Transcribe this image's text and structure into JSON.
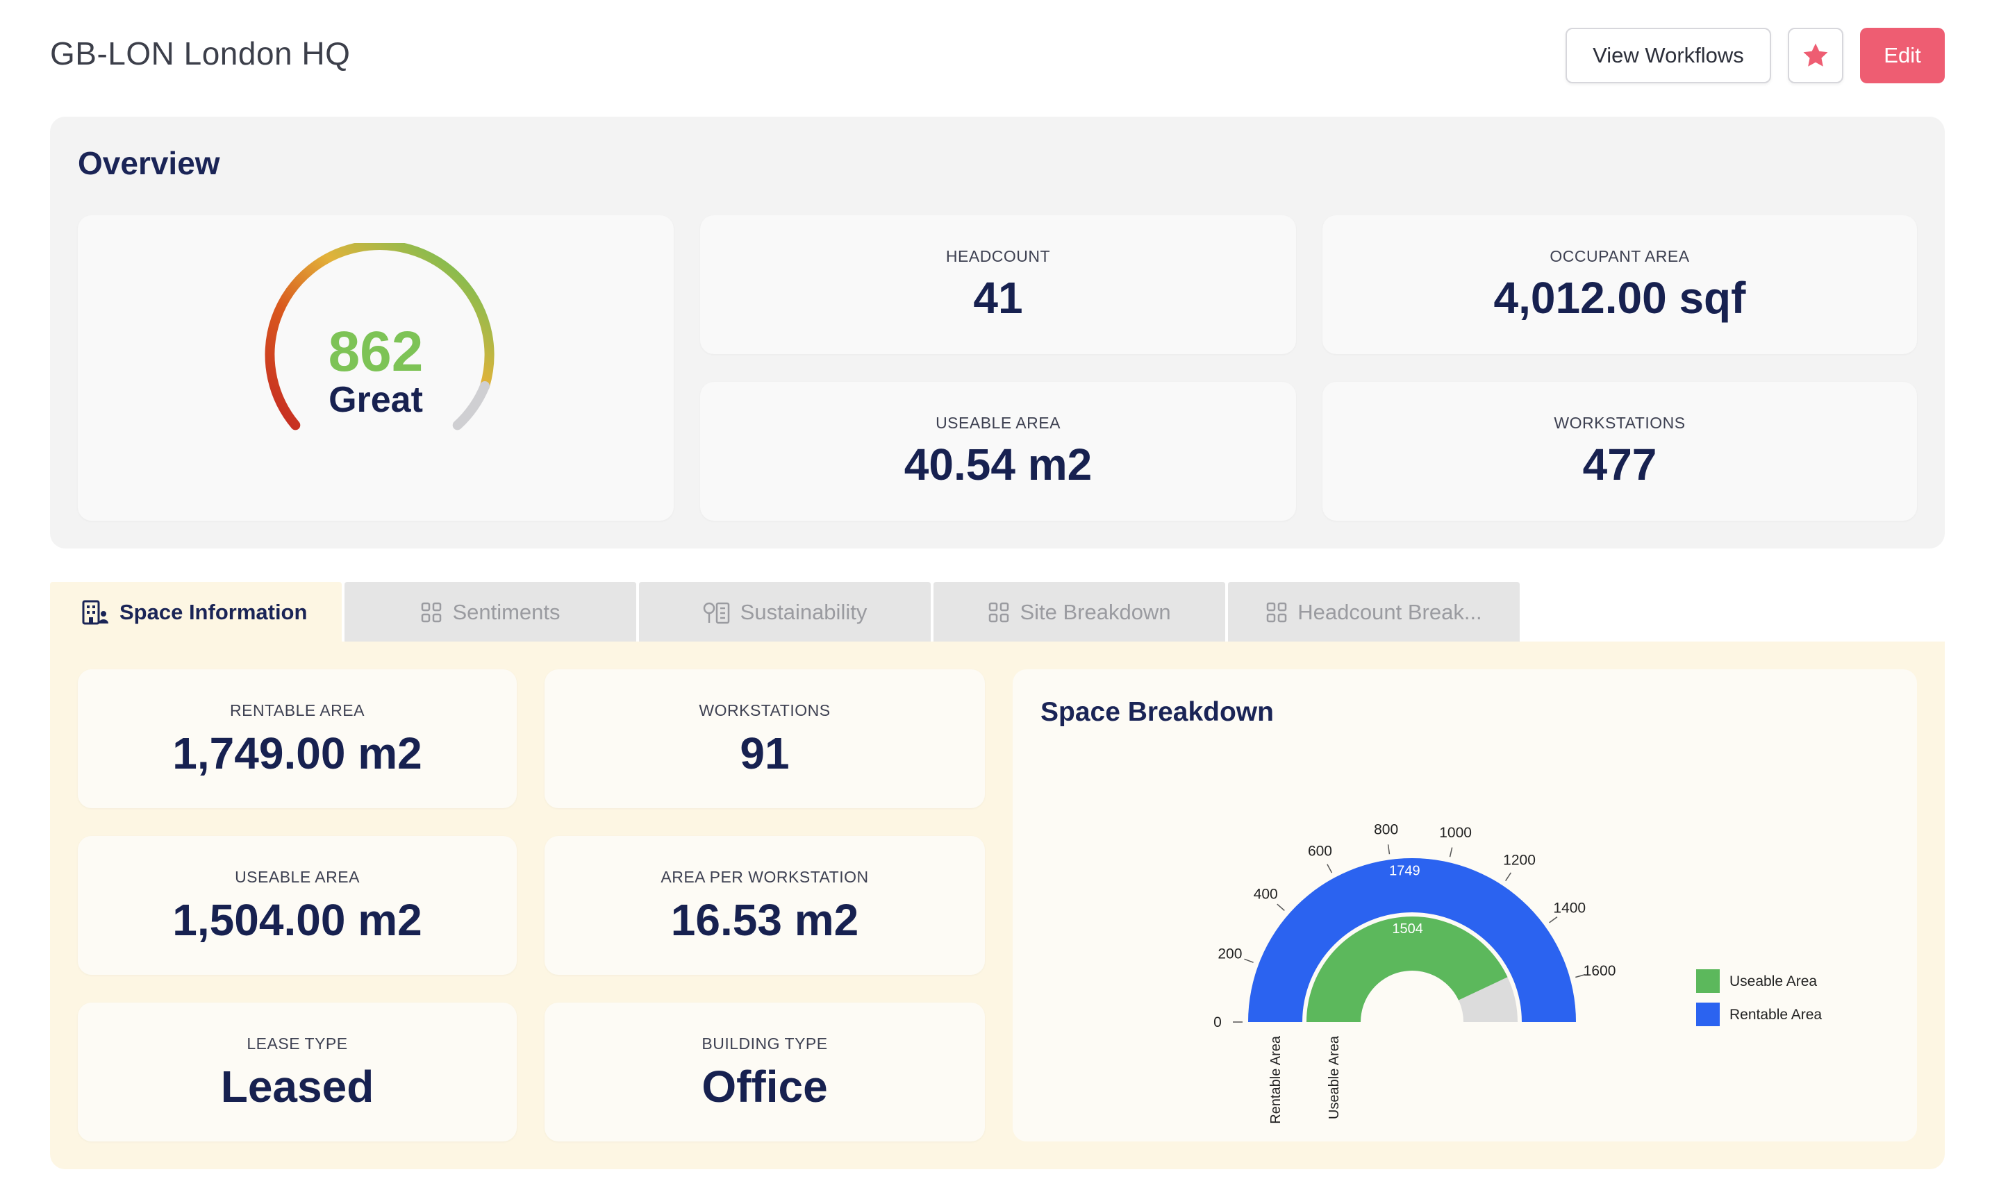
{
  "header": {
    "title": "GB-LON London HQ",
    "view_workflows_label": "View Workflows",
    "favorite_icon": "star-icon",
    "edit_label": "Edit"
  },
  "overview": {
    "title": "Overview",
    "score": {
      "value": "862",
      "label": "Great"
    },
    "stats": [
      {
        "label": "HEADCOUNT",
        "value": "41"
      },
      {
        "label": "OCCUPANT AREA",
        "value": "4,012.00 sqf"
      },
      {
        "label": "USEABLE AREA",
        "value": "40.54 m2"
      },
      {
        "label": "WORKSTATIONS",
        "value": "477"
      }
    ]
  },
  "tabs": [
    {
      "label": "Space Information",
      "icon": "building-users-icon",
      "active": true
    },
    {
      "label": "Sentiments",
      "icon": "grid-icon",
      "active": false
    },
    {
      "label": "Sustainability",
      "icon": "tree-building-icon",
      "active": false
    },
    {
      "label": "Site Breakdown",
      "icon": "grid-icon",
      "active": false
    },
    {
      "label": "Headcount Break...",
      "icon": "grid-icon",
      "active": false
    }
  ],
  "space_information": {
    "cards": [
      {
        "label": "RENTABLE AREA",
        "value": "1,749.00 m2"
      },
      {
        "label": "WORKSTATIONS",
        "value": "91"
      },
      {
        "label": "USEABLE AREA",
        "value": "1,504.00 m2"
      },
      {
        "label": "AREA PER WORKSTATION",
        "value": "16.53 m2"
      },
      {
        "label": "LEASE TYPE",
        "value": "Leased"
      },
      {
        "label": "BUILDING TYPE",
        "value": "Office"
      }
    ]
  },
  "colors": {
    "accent": "#ee5d72",
    "navy": "#1a2456",
    "score_green": "#7dc356",
    "rentable_blue": "#2b63f0",
    "useable_green": "#5cb85c"
  },
  "chart_data": {
    "type": "radial-bar",
    "title": "Space Breakdown",
    "axis": {
      "min": 0,
      "max": 1749,
      "ticks": [
        0,
        200,
        400,
        600,
        800,
        1000,
        1200,
        1400,
        1600
      ]
    },
    "categories": [
      "Rentable Area",
      "Useable Area"
    ],
    "series": [
      {
        "name": "Rentable Area",
        "value": 1749,
        "color": "#2b63f0"
      },
      {
        "name": "Useable Area",
        "value": 1504,
        "color": "#5cb85c"
      }
    ],
    "legend": [
      {
        "name": "Useable Area",
        "color": "#5cb85c"
      },
      {
        "name": "Rentable Area",
        "color": "#2b63f0"
      }
    ],
    "legend_position": "right"
  }
}
